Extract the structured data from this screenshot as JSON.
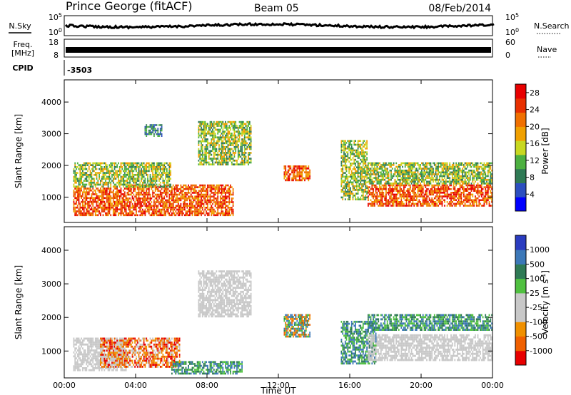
{
  "header": {
    "station": "Prince George (fitACF)",
    "beam": "Beam 05",
    "date": "08/Feb/2014"
  },
  "top_panels": {
    "nsky_label": "N.Sky",
    "nsearch_label": "N.Search",
    "noise_ticks_left": [
      "10^5",
      "10^0"
    ],
    "noise_ticks_right": [
      "10^5",
      "10^0"
    ],
    "freq_label_line1": "Freq.",
    "freq_label_line2": "[MHz]",
    "freq_ticks": [
      "18",
      "8"
    ],
    "nave_label": "Nave",
    "nave_ticks": [
      "60",
      "0"
    ],
    "cpid_label": "CPID",
    "cpid_value": "-3503"
  },
  "chart_data": [
    {
      "type": "heatmap",
      "name": "power",
      "ylabel": "Slant Range [km]",
      "y_ticks": [
        "1000",
        "2000",
        "3000",
        "4000"
      ],
      "ylim": [
        200,
        4700
      ],
      "x_ticks": [
        "00:00",
        "04:00",
        "08:00",
        "12:00",
        "16:00",
        "20:00",
        "00:00"
      ],
      "xlim_hours": [
        0,
        24
      ],
      "colorbar": {
        "label": "Power [dB]",
        "ticks": [
          "4",
          "8",
          "12",
          "16",
          "20",
          "24",
          "28"
        ],
        "range": [
          0,
          30
        ],
        "colors": [
          "#0000ff",
          "#2c4fc0",
          "#2f7a55",
          "#4cb040",
          "#c8d820",
          "#f0a000",
          "#f07000",
          "#e83000",
          "#e80000"
        ]
      },
      "echo_regions": [
        {
          "t_start": 0.5,
          "t_end": 3.5,
          "r_min": 400,
          "r_max": 1300,
          "level": "high"
        },
        {
          "t_start": 3.5,
          "t_end": 9.5,
          "r_min": 400,
          "r_max": 1400,
          "level": "high"
        },
        {
          "t_start": 0.5,
          "t_end": 6.0,
          "r_min": 1300,
          "r_max": 2100,
          "level": "medium"
        },
        {
          "t_start": 4.5,
          "t_end": 5.5,
          "r_min": 2900,
          "r_max": 3300,
          "level": "low"
        },
        {
          "t_start": 7.5,
          "t_end": 10.5,
          "r_min": 2000,
          "r_max": 3400,
          "level": "medium"
        },
        {
          "t_start": 12.3,
          "t_end": 13.8,
          "r_min": 1500,
          "r_max": 2000,
          "level": "high"
        },
        {
          "t_start": 15.5,
          "t_end": 17.0,
          "r_min": 900,
          "r_max": 2800,
          "level": "medium"
        },
        {
          "t_start": 17.0,
          "t_end": 24.0,
          "r_min": 700,
          "r_max": 1400,
          "level": "high"
        },
        {
          "t_start": 17.0,
          "t_end": 24.0,
          "r_min": 1400,
          "r_max": 2100,
          "level": "medium"
        }
      ]
    },
    {
      "type": "heatmap",
      "name": "velocity",
      "ylabel": "Slant Range [km]",
      "y_ticks": [
        "1000",
        "2000",
        "3000",
        "4000"
      ],
      "ylim": [
        200,
        4700
      ],
      "x_ticks": [
        "00:00",
        "04:00",
        "08:00",
        "12:00",
        "16:00",
        "20:00",
        "00:00"
      ],
      "xlabel": "Time UT",
      "xlim_hours": [
        0,
        24
      ],
      "colorbar": {
        "label": "Velocity [m s^-1]",
        "ticks": [
          "1000",
          "500",
          "100",
          "25",
          "-25",
          "-100",
          "-500",
          "-1000"
        ],
        "colors": [
          "#2a3cc0",
          "#3c78b8",
          "#2f7a55",
          "#50c040",
          "#c8c8c8",
          "#c8c8c8",
          "#f09000",
          "#f06000",
          "#e80000"
        ]
      },
      "echo_regions": [
        {
          "t_start": 0.5,
          "t_end": 3.5,
          "r_min": 400,
          "r_max": 1400,
          "level": "ground"
        },
        {
          "t_start": 2.0,
          "t_end": 6.5,
          "r_min": 500,
          "r_max": 1400,
          "level": "negative"
        },
        {
          "t_start": 6.0,
          "t_end": 10.0,
          "r_min": 300,
          "r_max": 700,
          "level": "positive"
        },
        {
          "t_start": 7.5,
          "t_end": 10.5,
          "r_min": 2000,
          "r_max": 3400,
          "level": "ground"
        },
        {
          "t_start": 12.3,
          "t_end": 13.8,
          "r_min": 1400,
          "r_max": 2100,
          "level": "mixed"
        },
        {
          "t_start": 15.5,
          "t_end": 17.5,
          "r_min": 600,
          "r_max": 1900,
          "level": "positive"
        },
        {
          "t_start": 17.0,
          "t_end": 24.0,
          "r_min": 700,
          "r_max": 1500,
          "level": "ground"
        },
        {
          "t_start": 17.0,
          "t_end": 24.0,
          "r_min": 1600,
          "r_max": 2100,
          "level": "positive"
        }
      ]
    }
  ]
}
